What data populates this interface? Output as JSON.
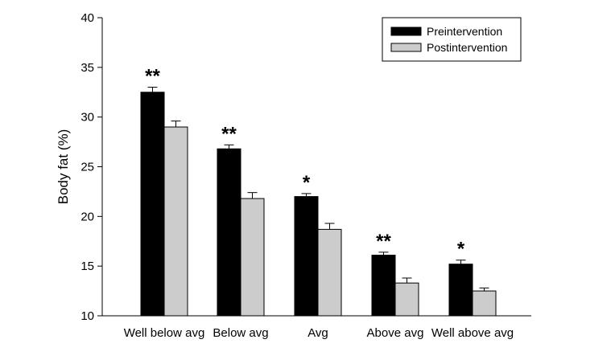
{
  "chart_data": {
    "type": "bar",
    "title": "",
    "xlabel": "",
    "ylabel": "Body fat (%)",
    "ylim": [
      10,
      40
    ],
    "yticks": [
      10,
      15,
      20,
      25,
      30,
      35,
      40
    ],
    "grid": false,
    "legend_position": "top-right",
    "categories": [
      "Well below avg",
      "Below avg",
      "Avg",
      "Above avg",
      "Well above avg"
    ],
    "series": [
      {
        "name": "Preintervention",
        "color": "#000000",
        "values": [
          32.5,
          26.8,
          22.0,
          16.1,
          15.2
        ],
        "errors": [
          0.5,
          0.4,
          0.3,
          0.3,
          0.4
        ]
      },
      {
        "name": "Postintervention",
        "color": "#cccccc",
        "values": [
          29.0,
          21.8,
          18.7,
          13.3,
          12.5
        ],
        "errors": [
          0.6,
          0.6,
          0.6,
          0.5,
          0.3
        ]
      }
    ],
    "annotations": [
      "**",
      "**",
      "*",
      "**",
      "*"
    ]
  }
}
